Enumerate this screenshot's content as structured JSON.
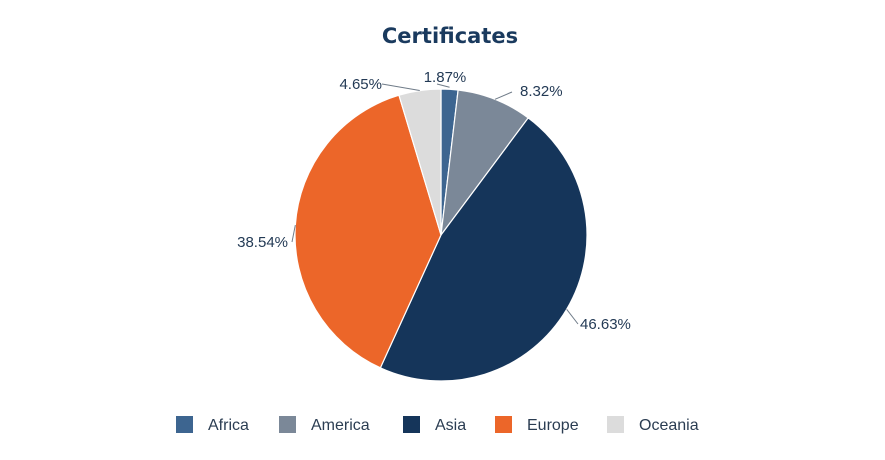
{
  "chart_data": {
    "type": "pie",
    "title": "Certificates",
    "categories": [
      "Africa",
      "America",
      "Asia",
      "Europe",
      "Oceania"
    ],
    "values": [
      1.87,
      8.32,
      46.63,
      38.54,
      4.65
    ],
    "labels": [
      "1.87%",
      "8.32%",
      "46.63%",
      "38.54%",
      "4.65%"
    ],
    "colors": [
      "#3d6590",
      "#7b8898",
      "#15355a",
      "#ec6629",
      "#dcdcdc"
    ],
    "legend": "bottom",
    "start": "top",
    "direction": "clockwise"
  }
}
